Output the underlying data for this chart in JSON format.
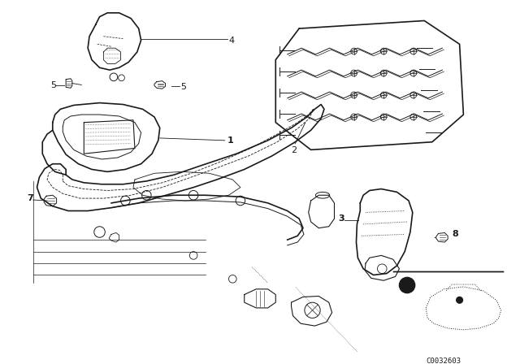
{
  "bg_color": "#ffffff",
  "fig_width": 6.4,
  "fig_height": 4.48,
  "dpi": 100,
  "diagram_color": "#1a1a1a",
  "label_fontsize": 8,
  "catalog_num": "C0032603"
}
